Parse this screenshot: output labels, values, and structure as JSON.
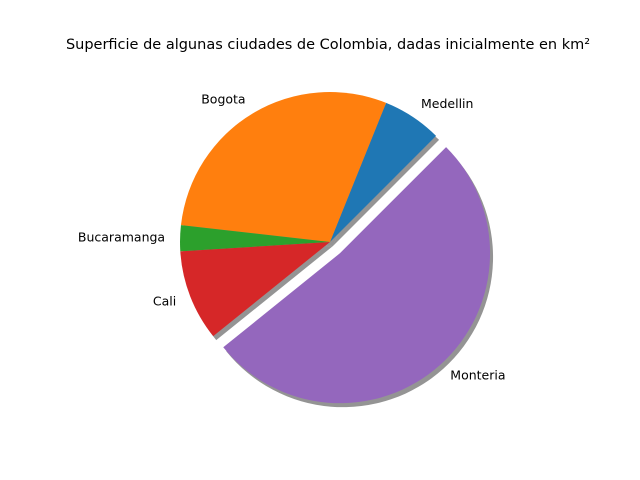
{
  "chart_data": {
    "type": "pie",
    "title": "Superficie de algunas ciudades de Colombia, dadas inicialmente en km²",
    "categories": [
      "Medellin",
      "Bogota",
      "Bucaramanga",
      "Cali",
      "Monteria"
    ],
    "values": [
      6.4,
      29.3,
      2.8,
      9.8,
      51.7
    ],
    "colors": [
      "#1f77b4",
      "#ff7f0e",
      "#2ca02c",
      "#d62728",
      "#9467bd"
    ],
    "start_angle_deg": 45,
    "explode": [
      0,
      0,
      0,
      0,
      0.1
    ],
    "shadow": true,
    "legend": "none"
  }
}
